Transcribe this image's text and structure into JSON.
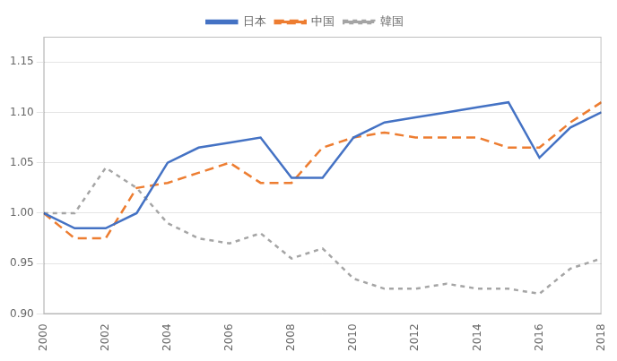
{
  "chart_data": {
    "type": "line",
    "x": [
      2000,
      2001,
      2002,
      2003,
      2004,
      2005,
      2006,
      2007,
      2008,
      2009,
      2010,
      2011,
      2012,
      2013,
      2014,
      2015,
      2016,
      2017,
      2018
    ],
    "series": [
      {
        "name": "日本",
        "color": "#4472C4",
        "line_style": "solid",
        "values": [
          1.0,
          0.985,
          0.985,
          1.0,
          1.05,
          1.065,
          1.07,
          1.075,
          1.035,
          1.035,
          1.075,
          1.09,
          1.095,
          1.1,
          1.105,
          1.11,
          1.055,
          1.085,
          1.1
        ]
      },
      {
        "name": "中国",
        "color": "#ED7D31",
        "line_style": "longdash",
        "values": [
          1.0,
          0.975,
          0.975,
          1.025,
          1.03,
          1.04,
          1.05,
          1.03,
          1.03,
          1.065,
          1.075,
          1.08,
          1.075,
          1.075,
          1.075,
          1.065,
          1.065,
          1.09,
          1.11
        ]
      },
      {
        "name": "韓国",
        "color": "#A5A5A5",
        "line_style": "dashed",
        "values": [
          1.0,
          1.0,
          1.045,
          1.025,
          0.99,
          0.975,
          0.97,
          0.98,
          0.955,
          0.965,
          0.935,
          0.925,
          0.925,
          0.93,
          0.925,
          0.925,
          0.92,
          0.945,
          0.955
        ]
      }
    ],
    "xlim": [
      2000,
      2018
    ],
    "xticks": [
      2000,
      2002,
      2004,
      2006,
      2008,
      2010,
      2012,
      2014,
      2016,
      2018
    ],
    "ylim": [
      0.9,
      1.175
    ],
    "yticks": [
      {
        "value": 0.9,
        "label": "0.90"
      },
      0.95,
      {
        "value": 1.0,
        "label": "1.00"
      },
      1.05,
      {
        "value": 1.1,
        "label": "1.10"
      },
      1.15
    ],
    "grid": "y",
    "legend": "top"
  }
}
